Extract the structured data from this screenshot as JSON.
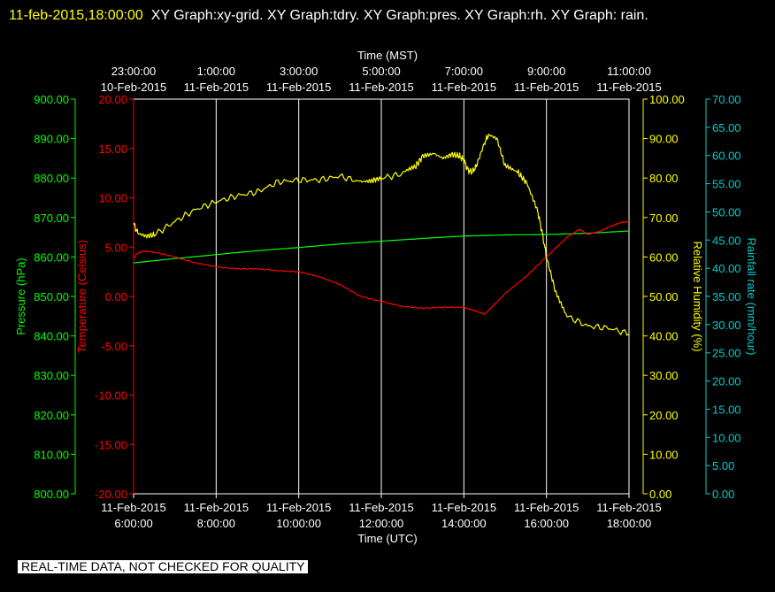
{
  "header": {
    "timestamp": "11-feb-2015,18:00:00",
    "titles": "XY Graph:xy-grid.  XY Graph:tdry.  XY Graph:pres.  XY Graph:rh.  XY Graph: rain."
  },
  "footer": {
    "note": "REAL-TIME DATA, NOT CHECKED FOR QUALITY"
  },
  "colors": {
    "pressure": "#00ff00",
    "temperature": "#ff0000",
    "humidity": "#ffff00",
    "rain": "#00cccc",
    "frame": "#ffffff",
    "grid": "#ffffff"
  },
  "chart_data": {
    "type": "line",
    "grid": true,
    "x_top": {
      "label": "Time (MST)",
      "ticks": [
        {
          "time": "23:00:00",
          "date": "10-Feb-2015"
        },
        {
          "time": "1:00:00",
          "date": "11-Feb-2015"
        },
        {
          "time": "3:00:00",
          "date": "11-Feb-2015"
        },
        {
          "time": "5:00:00",
          "date": "11-Feb-2015"
        },
        {
          "time": "7:00:00",
          "date": "11-Feb-2015"
        },
        {
          "time": "9:00:00",
          "date": "11-Feb-2015"
        },
        {
          "time": "11:00:00",
          "date": "11-Feb-2015"
        }
      ]
    },
    "x_bottom": {
      "label": "Time (UTC)",
      "range": [
        6,
        18
      ],
      "ticks": [
        {
          "date": "11-Feb-2015",
          "time": "6:00:00",
          "hour": 6
        },
        {
          "date": "11-Feb-2015",
          "time": "8:00:00",
          "hour": 8
        },
        {
          "date": "11-Feb-2015",
          "time": "10:00:00",
          "hour": 10
        },
        {
          "date": "11-Feb-2015",
          "time": "12:00:00",
          "hour": 12
        },
        {
          "date": "11-Feb-2015",
          "time": "14:00:00",
          "hour": 14
        },
        {
          "date": "11-Feb-2015",
          "time": "16:00:00",
          "hour": 16
        },
        {
          "date": "11-Feb-2015",
          "time": "18:00:00",
          "hour": 18
        }
      ]
    },
    "axes": {
      "pressure": {
        "label": "Pressure (hPa)",
        "range": [
          800,
          900
        ],
        "ticks": [
          "800.00",
          "810.00",
          "820.00",
          "830.00",
          "840.00",
          "850.00",
          "860.00",
          "870.00",
          "880.00",
          "890.00",
          "900.00"
        ]
      },
      "temperature": {
        "label": "Temperature (Celsius)",
        "range": [
          -20,
          20
        ],
        "ticks": [
          "-20.00",
          "-15.00",
          "-10.00",
          "-5.00",
          "0.00",
          "5.00",
          "10.00",
          "15.00",
          "20.00"
        ]
      },
      "humidity": {
        "label": "Relative Humidity (%)",
        "range": [
          0,
          100
        ],
        "ticks": [
          "0.00",
          "10.00",
          "20.00",
          "30.00",
          "40.00",
          "50.00",
          "60.00",
          "70.00",
          "80.00",
          "90.00",
          "100.00"
        ]
      },
      "rain": {
        "label": "Rainfall rate (mm/hour)",
        "range": [
          0,
          70
        ],
        "ticks": [
          "0.00",
          "5.00",
          "10.00",
          "15.00",
          "20.00",
          "25.00",
          "30.00",
          "35.00",
          "40.00",
          "45.00",
          "50.00",
          "55.00",
          "60.00",
          "65.00",
          "70.00"
        ]
      }
    },
    "series": [
      {
        "key": "pressure",
        "axis": "pressure",
        "x": [
          6.0,
          7.0,
          8.0,
          9.0,
          10.0,
          11.0,
          12.0,
          13.0,
          14.0,
          15.0,
          16.0,
          17.0,
          18.0
        ],
        "y": [
          858.5,
          859.6,
          860.6,
          861.6,
          862.4,
          863.3,
          864.0,
          864.7,
          865.3,
          865.6,
          865.7,
          866.0,
          866.6
        ]
      },
      {
        "key": "temperature",
        "axis": "temperature",
        "x": [
          6.0,
          6.1,
          6.25,
          6.5,
          7.0,
          7.5,
          8.0,
          8.5,
          9.0,
          9.5,
          10.0,
          10.5,
          11.0,
          11.5,
          12.0,
          12.5,
          13.0,
          13.5,
          14.0,
          14.3,
          14.5,
          14.7,
          15.0,
          15.5,
          16.0,
          16.5,
          16.8,
          17.0,
          17.3,
          17.5,
          17.8,
          18.0
        ],
        "y": [
          3.9,
          4.4,
          4.6,
          4.5,
          4.0,
          3.4,
          3.0,
          2.8,
          2.8,
          2.6,
          2.5,
          2.0,
          1.2,
          0.0,
          -0.5,
          -1.0,
          -1.2,
          -1.1,
          -1.1,
          -1.5,
          -1.8,
          -1.0,
          0.3,
          2.0,
          4.0,
          6.0,
          6.8,
          6.3,
          6.6,
          7.0,
          7.5,
          7.6
        ]
      },
      {
        "key": "humidity",
        "axis": "humidity",
        "x": [
          6.0,
          6.1,
          6.3,
          6.5,
          7.0,
          7.5,
          8.0,
          8.5,
          9.0,
          9.5,
          10.0,
          10.5,
          11.0,
          11.5,
          11.8,
          12.0,
          12.5,
          12.8,
          13.0,
          13.3,
          13.5,
          13.7,
          13.9,
          14.0,
          14.1,
          14.2,
          14.3,
          14.5,
          14.6,
          14.8,
          15.0,
          15.3,
          15.5,
          15.8,
          15.9,
          16.0,
          16.2,
          16.5,
          17.0,
          17.5,
          18.0
        ],
        "y": [
          68.5,
          66.0,
          65.3,
          65.6,
          69.0,
          72.0,
          74.0,
          75.5,
          76.5,
          79.0,
          79.5,
          79.5,
          80.5,
          79.0,
          79.5,
          80.0,
          81.0,
          82.5,
          85.5,
          86.0,
          85.0,
          86.0,
          85.5,
          84.5,
          82.0,
          81.5,
          83.0,
          89.0,
          91.0,
          90.0,
          83.0,
          81.5,
          79.0,
          71.0,
          66.0,
          60.0,
          52.0,
          45.0,
          42.5,
          42.0,
          40.5
        ]
      },
      {
        "key": "rain",
        "axis": "rain",
        "x": [],
        "y": []
      }
    ]
  }
}
